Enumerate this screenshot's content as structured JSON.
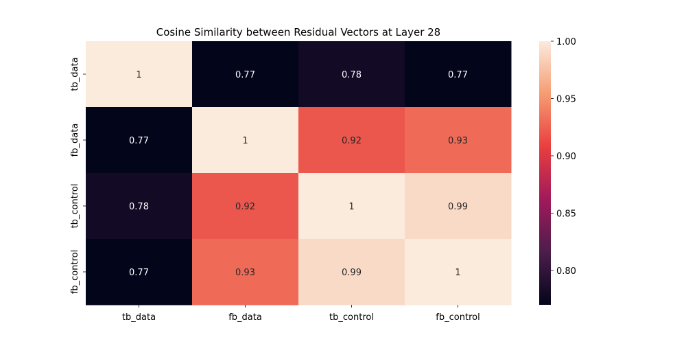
{
  "chart_data": {
    "type": "heatmap",
    "title": "Cosine Similarity between Residual Vectors at Layer 28",
    "xlabel": "",
    "ylabel": "",
    "x_categories": [
      "tb_data",
      "fb_data",
      "tb_control",
      "fb_control"
    ],
    "y_categories": [
      "tb_data",
      "fb_data",
      "tb_control",
      "fb_control"
    ],
    "values": [
      [
        1.0,
        0.77,
        0.78,
        0.77
      ],
      [
        0.77,
        1.0,
        0.92,
        0.93
      ],
      [
        0.78,
        0.92,
        1.0,
        0.99
      ],
      [
        0.77,
        0.93,
        0.99,
        1.0
      ]
    ],
    "cell_labels": [
      [
        "1",
        "0.77",
        "0.78",
        "0.77"
      ],
      [
        "0.77",
        "1",
        "0.92",
        "0.93"
      ],
      [
        "0.78",
        "0.92",
        "1",
        "0.99"
      ],
      [
        "0.77",
        "0.93",
        "0.99",
        "1"
      ]
    ],
    "colorbar": {
      "vmin": 0.77,
      "vmax": 1.0,
      "ticks": [
        0.8,
        0.85,
        0.9,
        0.95,
        1.0
      ],
      "tick_labels": [
        "0.80",
        "0.85",
        "0.90",
        "0.95",
        "1.00"
      ],
      "colormap": "rocket",
      "stops": [
        "#03051a",
        "#4c1d4b",
        "#a11a5b",
        "#e83f3f",
        "#f69c73",
        "#faebdd"
      ]
    },
    "grid": false,
    "legend": "colorbar-right"
  }
}
